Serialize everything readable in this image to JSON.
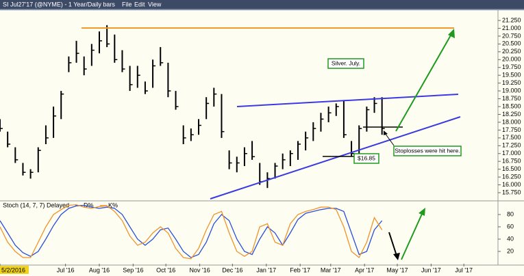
{
  "window": {
    "title": "SI Jul27'17 (@NYME) - 1 Year/Daily bars",
    "menu": [
      "File",
      "Edit",
      "View"
    ]
  },
  "chart_data": [
    {
      "type": "ohlc",
      "color": "#000000",
      "annotations": [
        "Silver. July.",
        "$16.85",
        "Stoplosses were hit here."
      ],
      "xlim": [
        "2016-05-02",
        "2017-07-31"
      ],
      "x": [
        "2016-05-02",
        "2016-05-09",
        "2016-05-16",
        "2016-05-23",
        "2016-05-30",
        "2016-06-06",
        "2016-06-13",
        "2016-06-20",
        "2016-06-27",
        "2016-07-04",
        "2016-07-11",
        "2016-07-18",
        "2016-07-25",
        "2016-08-01",
        "2016-08-08",
        "2016-08-15",
        "2016-08-22",
        "2016-08-29",
        "2016-09-05",
        "2016-09-12",
        "2016-09-19",
        "2016-09-26",
        "2016-10-03",
        "2016-10-10",
        "2016-10-17",
        "2016-10-24",
        "2016-10-31",
        "2016-11-07",
        "2016-11-14",
        "2016-11-21",
        "2016-11-28",
        "2016-12-05",
        "2016-12-12",
        "2016-12-19",
        "2016-12-26",
        "2017-01-02",
        "2017-01-09",
        "2017-01-16",
        "2017-01-23",
        "2017-01-30",
        "2017-02-06",
        "2017-02-13",
        "2017-02-20",
        "2017-02-27",
        "2017-03-06",
        "2017-03-13",
        "2017-03-20",
        "2017-03-27",
        "2017-04-03",
        "2017-04-10",
        "2017-04-17"
      ],
      "high": [
        18.1,
        17.7,
        17.2,
        16.7,
        16.5,
        17.2,
        17.9,
        18.5,
        19.0,
        20.1,
        20.6,
        20.1,
        20.5,
        20.9,
        21.1,
        20.8,
        20.3,
        19.8,
        19.8,
        19.3,
        20.0,
        20.4,
        19.9,
        19.0,
        17.9,
        17.8,
        18.1,
        18.8,
        19.1,
        18.9,
        17.1,
        16.9,
        17.2,
        17.4,
        16.7,
        16.4,
        16.7,
        17.0,
        17.1,
        17.4,
        17.7,
        18.0,
        18.3,
        18.5,
        18.6,
        18.7,
        17.4,
        17.9,
        18.5,
        18.8,
        18.8
      ],
      "low": [
        17.7,
        17.2,
        16.7,
        16.3,
        16.2,
        16.4,
        17.3,
        17.5,
        18.1,
        19.6,
        19.9,
        19.5,
        19.8,
        20.2,
        20.4,
        19.9,
        19.6,
        19.0,
        19.1,
        18.9,
        19.1,
        19.8,
        18.8,
        18.4,
        17.3,
        17.4,
        17.6,
        18.1,
        18.5,
        17.5,
        16.5,
        16.4,
        16.6,
        16.8,
        16.0,
        15.9,
        16.2,
        16.5,
        16.6,
        16.8,
        17.1,
        17.4,
        17.7,
        18.0,
        18.2,
        17.5,
        16.9,
        17.0,
        17.7,
        18.3,
        17.6
      ],
      "close": [
        17.8,
        17.3,
        16.8,
        16.4,
        16.4,
        17.1,
        17.5,
        18.2,
        18.9,
        19.9,
        20.2,
        19.7,
        20.3,
        20.6,
        20.5,
        20.0,
        19.7,
        19.2,
        19.5,
        19.0,
        19.8,
        19.9,
        19.0,
        18.5,
        17.5,
        17.6,
        17.9,
        18.6,
        18.9,
        17.7,
        16.7,
        16.7,
        17.0,
        16.9,
        16.1,
        16.2,
        16.6,
        16.8,
        17.0,
        17.3,
        17.5,
        17.8,
        18.1,
        18.3,
        18.5,
        17.6,
        17.0,
        17.8,
        18.4,
        18.6,
        17.8
      ],
      "ylim": [
        15.5,
        21.5
      ],
      "yticks": [
        {
          "value": 15.75,
          "label": "15.750"
        },
        {
          "value": 16,
          "label": "16.000"
        },
        {
          "value": 16.25,
          "label": "16.250"
        },
        {
          "value": 16.5,
          "label": "16.500"
        },
        {
          "value": 16.75,
          "label": "16.750"
        },
        {
          "value": 17,
          "label": "17.000"
        },
        {
          "value": 17.25,
          "label": "17.250"
        },
        {
          "value": 17.5,
          "label": "17.500"
        },
        {
          "value": 17.75,
          "label": "17.750"
        },
        {
          "value": 18,
          "label": "18.000"
        },
        {
          "value": 18.25,
          "label": "18.250"
        },
        {
          "value": 18.5,
          "label": "18.500"
        },
        {
          "value": 18.75,
          "label": "18.750"
        },
        {
          "value": 19,
          "label": "19.000"
        },
        {
          "value": 19.25,
          "label": "19.250"
        },
        {
          "value": 19.5,
          "label": "19.500"
        },
        {
          "value": 19.75,
          "label": "19.750"
        },
        {
          "value": 20,
          "label": "20.000"
        },
        {
          "value": 20.25,
          "label": "20.250"
        },
        {
          "value": 20.5,
          "label": "20.500"
        },
        {
          "value": 20.75,
          "label": "20.750"
        },
        {
          "value": 21,
          "label": "21.000"
        },
        {
          "value": 21.25,
          "label": "21.250"
        }
      ]
    },
    {
      "type": "line",
      "title": "Stoch (14, 7, 7) Delayed",
      "xlim": [
        "2016-05-02",
        "2017-07-31"
      ],
      "x": [
        "2016-05-02",
        "2016-05-09",
        "2016-05-16",
        "2016-05-23",
        "2016-05-30",
        "2016-06-06",
        "2016-06-13",
        "2016-06-20",
        "2016-06-27",
        "2016-07-04",
        "2016-07-11",
        "2016-07-18",
        "2016-07-25",
        "2016-08-01",
        "2016-08-08",
        "2016-08-15",
        "2016-08-22",
        "2016-08-29",
        "2016-09-05",
        "2016-09-12",
        "2016-09-19",
        "2016-09-26",
        "2016-10-03",
        "2016-10-10",
        "2016-10-17",
        "2016-10-24",
        "2016-10-31",
        "2016-11-07",
        "2016-11-14",
        "2016-11-21",
        "2016-11-28",
        "2016-12-05",
        "2016-12-12",
        "2016-12-19",
        "2016-12-26",
        "2017-01-02",
        "2017-01-09",
        "2017-01-16",
        "2017-01-23",
        "2017-01-30",
        "2017-02-06",
        "2017-02-13",
        "2017-02-20",
        "2017-02-27",
        "2017-03-06",
        "2017-03-13",
        "2017-03-20",
        "2017-03-27",
        "2017-04-03",
        "2017-04-10",
        "2017-04-17"
      ],
      "series": [
        {
          "name": "D%",
          "color": "#2a4fd6",
          "values": [
            70,
            50,
            30,
            18,
            12,
            20,
            40,
            62,
            80,
            90,
            94,
            95,
            92,
            90,
            92,
            90,
            80,
            60,
            40,
            30,
            40,
            55,
            58,
            40,
            20,
            10,
            15,
            35,
            65,
            80,
            70,
            40,
            20,
            15,
            40,
            60,
            50,
            30,
            50,
            72,
            82,
            85,
            88,
            90,
            90,
            85,
            50,
            15,
            20,
            55,
            70
          ]
        },
        {
          "name": "K%",
          "color": "#f0922a",
          "values": [
            60,
            35,
            20,
            10,
            10,
            35,
            60,
            80,
            88,
            95,
            96,
            92,
            90,
            93,
            94,
            85,
            70,
            45,
            30,
            35,
            50,
            60,
            50,
            25,
            10,
            8,
            25,
            55,
            80,
            85,
            50,
            20,
            12,
            20,
            60,
            65,
            35,
            30,
            65,
            80,
            85,
            88,
            92,
            92,
            88,
            60,
            20,
            10,
            35,
            75,
            55
          ]
        }
      ],
      "ylim": [
        0,
        100
      ],
      "yticks": [
        20,
        40,
        60,
        80
      ],
      "xticks": [
        {
          "value": "2016-05-02",
          "label": "5/2/2016"
        },
        {
          "value": "2016-07-01",
          "label": "Jul '16"
        },
        {
          "value": "2016-08-01",
          "label": "Aug '16"
        },
        {
          "value": "2016-09-01",
          "label": "Sep '16"
        },
        {
          "value": "2016-10-01",
          "label": "Oct '16"
        },
        {
          "value": "2016-11-01",
          "label": "Nov '16"
        },
        {
          "value": "2016-12-01",
          "label": "Dec '16"
        },
        {
          "value": "2017-01-01",
          "label": "Jan '17"
        },
        {
          "value": "2017-02-01",
          "label": "Feb '17"
        },
        {
          "value": "2017-03-01",
          "label": "Mar '17"
        },
        {
          "value": "2017-04-01",
          "label": "Apr '17"
        },
        {
          "value": "2017-05-01",
          "label": "May '17"
        },
        {
          "value": "2017-06-01",
          "label": "Jun '17"
        },
        {
          "value": "2017-07-01",
          "label": "Jul '17"
        }
      ]
    }
  ]
}
